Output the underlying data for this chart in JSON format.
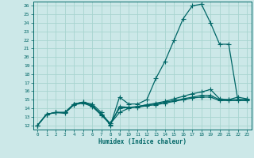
{
  "title": "",
  "xlabel": "Humidex (Indice chaleur)",
  "xlim": [
    -0.5,
    23.5
  ],
  "ylim": [
    11.5,
    26.5
  ],
  "xticks": [
    0,
    1,
    2,
    3,
    4,
    5,
    6,
    7,
    8,
    9,
    10,
    11,
    12,
    13,
    14,
    15,
    16,
    17,
    18,
    19,
    20,
    21,
    22,
    23
  ],
  "yticks": [
    12,
    13,
    14,
    15,
    16,
    17,
    18,
    19,
    20,
    21,
    22,
    23,
    24,
    25,
    26
  ],
  "bg_color": "#cce8e8",
  "grid_color": "#a8d4d0",
  "line_color": "#006666",
  "line_width": 0.9,
  "marker": "+",
  "marker_size": 4,
  "lines": [
    [
      12.0,
      13.3,
      13.5,
      13.5,
      14.5,
      14.7,
      14.5,
      13.5,
      12.0,
      15.3,
      14.5,
      14.5,
      15.0,
      17.5,
      19.5,
      22.0,
      24.5,
      26.0,
      26.2,
      24.0,
      21.5,
      21.5,
      15.0,
      15.0
    ],
    [
      12.0,
      13.3,
      13.5,
      13.5,
      14.5,
      14.7,
      14.3,
      13.3,
      12.2,
      13.5,
      14.0,
      14.2,
      14.4,
      14.6,
      14.8,
      15.1,
      15.4,
      15.7,
      15.9,
      16.2,
      15.1,
      15.0,
      15.3,
      15.1
    ],
    [
      12.0,
      13.3,
      13.5,
      13.5,
      14.5,
      14.7,
      14.3,
      13.3,
      12.2,
      14.0,
      14.1,
      14.2,
      14.4,
      14.5,
      14.7,
      14.9,
      15.1,
      15.3,
      15.5,
      15.5,
      15.0,
      15.0,
      15.0,
      15.0
    ],
    [
      12.0,
      13.3,
      13.5,
      13.4,
      14.4,
      14.6,
      14.2,
      13.2,
      12.1,
      14.2,
      14.1,
      14.1,
      14.3,
      14.4,
      14.6,
      14.8,
      15.0,
      15.2,
      15.3,
      15.3,
      14.9,
      14.9,
      14.9,
      14.9
    ]
  ]
}
